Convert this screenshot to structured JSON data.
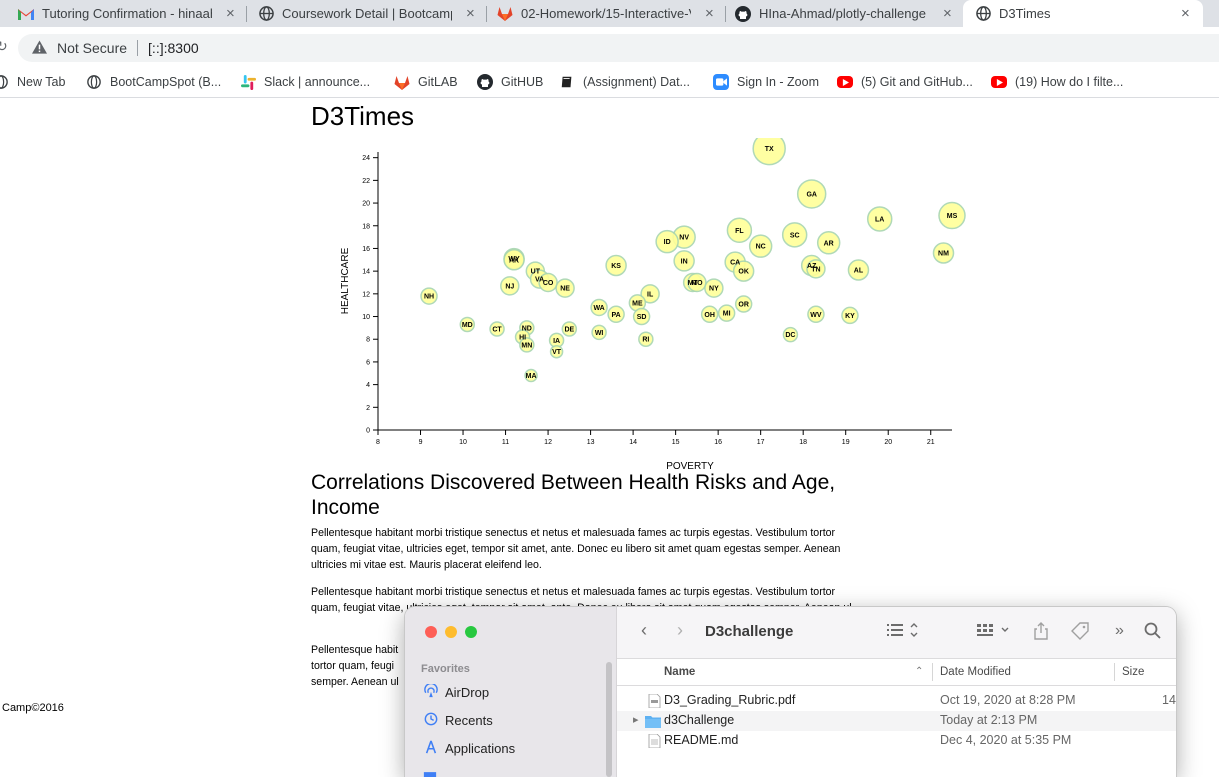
{
  "browser": {
    "tabs": [
      {
        "title": "Tutoring Confirmation - hinaahmad",
        "icon": "gmail-icon",
        "close": "×"
      },
      {
        "title": "Coursework Detail | Bootcamp Spot",
        "icon": "globe-icon",
        "close": "×"
      },
      {
        "title": "02-Homework/15-Interactive-Visualizations",
        "icon": "gitlab-icon",
        "close": "×"
      },
      {
        "title": "HIna-Ahmad/plotly-challenge",
        "icon": "github-icon",
        "close": "×"
      },
      {
        "title": "D3Times",
        "icon": "globe-icon",
        "close": "×",
        "active": true
      }
    ],
    "security_label": "Not Secure",
    "url": "[::]:8300",
    "bookmarks": [
      {
        "label": "New Tab",
        "icon": "globe-icon"
      },
      {
        "label": "BootCampSpot (B...",
        "icon": "globe-icon"
      },
      {
        "label": "Slack | announce...",
        "icon": "slack-icon"
      },
      {
        "label": "GitLAB",
        "icon": "gitlab-icon"
      },
      {
        "label": "GitHUB",
        "icon": "github-icon"
      },
      {
        "label": "(Assignment) Dat...",
        "icon": "book-icon"
      },
      {
        "label": "Sign In - Zoom",
        "icon": "zoom-icon"
      },
      {
        "label": "(5) Git and GitHub...",
        "icon": "youtube-icon"
      },
      {
        "label": "(19) How do I filte...",
        "icon": "youtube-icon"
      }
    ]
  },
  "page": {
    "title": "D3Times",
    "heading": "Correlations Discovered Between Health Risks and Age, Income",
    "paragraph": "Pellentesque habitant morbi tristique senectus et netus et malesuada fames ac turpis egestas. Vestibulum tortor quam, feugiat vitae, ultricies eget, tempor sit amet, ante. Donec eu libero sit amet quam egestas semper. Aenean ultricies mi vitae est. Mauris placerat eleifend leo.",
    "paragraph_partial": "Pellentesque habitant morbi tristique senectus et netus et malesuada fames ac turpis egestas. Vestibulum tortor quam, feugiat vitae, ultricies eget, tempor sit amet, ante. Donec eu libero sit amet quam egestas semper. Aenean ul",
    "paragraph_tail_a": "Pellentesque habit",
    "paragraph_tail_b": "tortor quam, feugi",
    "paragraph_tail_c": "semper. Aenean ul",
    "footer": "Camp©2016"
  },
  "chart_data": {
    "type": "scatter",
    "xlabel": "POVERTY",
    "ylabel": "HEALTHCARE",
    "xlim": [
      8,
      21.5
    ],
    "ylim": [
      0,
      24.5
    ],
    "xticks": [
      8,
      9,
      10,
      11,
      12,
      13,
      14,
      15,
      16,
      17,
      18,
      19,
      20,
      21
    ],
    "yticks": [
      0,
      2,
      4,
      6,
      8,
      10,
      12,
      14,
      16,
      18,
      20,
      22,
      24
    ],
    "marker_color": "#ffff99",
    "marker_stroke": "#a8d5b0",
    "points": [
      {
        "label": "TX",
        "x": 17.2,
        "y": 24.8,
        "r": 16
      },
      {
        "label": "GA",
        "x": 18.2,
        "y": 20.8,
        "r": 14
      },
      {
        "label": "MS",
        "x": 21.5,
        "y": 18.9,
        "r": 13
      },
      {
        "label": "LA",
        "x": 19.8,
        "y": 18.6,
        "r": 12
      },
      {
        "label": "FL",
        "x": 16.5,
        "y": 17.6,
        "r": 12
      },
      {
        "label": "SC",
        "x": 17.8,
        "y": 17.2,
        "r": 12
      },
      {
        "label": "NV",
        "x": 15.2,
        "y": 17.0,
        "r": 11
      },
      {
        "label": "ID",
        "x": 14.8,
        "y": 16.6,
        "r": 11
      },
      {
        "label": "NC",
        "x": 17.0,
        "y": 16.2,
        "r": 11
      },
      {
        "label": "AR",
        "x": 18.6,
        "y": 16.5,
        "r": 11
      },
      {
        "label": "NM",
        "x": 21.3,
        "y": 15.6,
        "r": 10
      },
      {
        "label": "WY",
        "x": 11.2,
        "y": 15.1,
        "r": 10
      },
      {
        "label": "AK",
        "x": 11.2,
        "y": 15.0,
        "r": 10
      },
      {
        "label": "IN",
        "x": 15.2,
        "y": 14.9,
        "r": 10
      },
      {
        "label": "CA",
        "x": 16.4,
        "y": 14.8,
        "r": 10
      },
      {
        "label": "KS",
        "x": 13.6,
        "y": 14.5,
        "r": 10
      },
      {
        "label": "AZ",
        "x": 18.2,
        "y": 14.5,
        "r": 10
      },
      {
        "label": "TN",
        "x": 18.3,
        "y": 14.2,
        "r": 9
      },
      {
        "label": "UT",
        "x": 11.7,
        "y": 14.0,
        "r": 9
      },
      {
        "label": "OK",
        "x": 16.6,
        "y": 14.0,
        "r": 10
      },
      {
        "label": "AL",
        "x": 19.3,
        "y": 14.1,
        "r": 10
      },
      {
        "label": "VA",
        "x": 11.8,
        "y": 13.3,
        "r": 9
      },
      {
        "label": "CO",
        "x": 12.0,
        "y": 13.0,
        "r": 9
      },
      {
        "label": "MT",
        "x": 15.4,
        "y": 13.0,
        "r": 9
      },
      {
        "label": "MO",
        "x": 15.5,
        "y": 13.0,
        "r": 9
      },
      {
        "label": "NJ",
        "x": 11.1,
        "y": 12.7,
        "r": 9
      },
      {
        "label": "NE",
        "x": 12.4,
        "y": 12.5,
        "r": 9
      },
      {
        "label": "NY",
        "x": 15.9,
        "y": 12.5,
        "r": 9
      },
      {
        "label": "IL",
        "x": 14.4,
        "y": 12.0,
        "r": 9
      },
      {
        "label": "NH",
        "x": 9.2,
        "y": 11.8,
        "r": 8
      },
      {
        "label": "ME",
        "x": 14.1,
        "y": 11.2,
        "r": 8
      },
      {
        "label": "WA",
        "x": 13.2,
        "y": 10.8,
        "r": 8
      },
      {
        "label": "OR",
        "x": 16.6,
        "y": 11.1,
        "r": 8
      },
      {
        "label": "PA",
        "x": 13.6,
        "y": 10.2,
        "r": 8
      },
      {
        "label": "OH",
        "x": 15.8,
        "y": 10.2,
        "r": 8
      },
      {
        "label": "MI",
        "x": 16.2,
        "y": 10.3,
        "r": 8
      },
      {
        "label": "WV",
        "x": 18.3,
        "y": 10.2,
        "r": 8
      },
      {
        "label": "KY",
        "x": 19.1,
        "y": 10.1,
        "r": 8
      },
      {
        "label": "SD",
        "x": 14.2,
        "y": 10.0,
        "r": 8
      },
      {
        "label": "MD",
        "x": 10.1,
        "y": 9.3,
        "r": 7
      },
      {
        "label": "CT",
        "x": 10.8,
        "y": 8.9,
        "r": 7
      },
      {
        "label": "ND",
        "x": 11.5,
        "y": 9.0,
        "r": 7
      },
      {
        "label": "DE",
        "x": 12.5,
        "y": 8.9,
        "r": 7
      },
      {
        "label": "WI",
        "x": 13.2,
        "y": 8.6,
        "r": 7
      },
      {
        "label": "DC",
        "x": 17.7,
        "y": 8.4,
        "r": 7
      },
      {
        "label": "HI",
        "x": 11.4,
        "y": 8.2,
        "r": 7
      },
      {
        "label": "RI",
        "x": 14.3,
        "y": 8.0,
        "r": 7
      },
      {
        "label": "IA",
        "x": 12.2,
        "y": 7.9,
        "r": 7
      },
      {
        "label": "MN",
        "x": 11.5,
        "y": 7.5,
        "r": 7
      },
      {
        "label": "VT",
        "x": 12.2,
        "y": 6.9,
        "r": 6
      },
      {
        "label": "MA",
        "x": 11.6,
        "y": 4.8,
        "r": 6
      }
    ]
  },
  "finder": {
    "title": "D3challenge",
    "sidebar_heading": "Favorites",
    "sidebar_items": [
      {
        "label": "AirDrop",
        "icon": "airdrop-icon"
      },
      {
        "label": "Recents",
        "icon": "clock-icon"
      },
      {
        "label": "Applications",
        "icon": "applications-icon"
      }
    ],
    "columns": {
      "name": "Name",
      "date": "Date Modified",
      "size": "Size"
    },
    "files": [
      {
        "name": "D3_Grading_Rubric.pdf",
        "date": "Oct 19, 2020 at 8:28 PM",
        "size": "14",
        "kind": "pdf"
      },
      {
        "name": "d3Challenge",
        "date": "Today at 2:13 PM",
        "size": "",
        "kind": "folder"
      },
      {
        "name": "README.md",
        "date": "Dec 4, 2020 at 5:35 PM",
        "size": "",
        "kind": "doc"
      }
    ]
  }
}
